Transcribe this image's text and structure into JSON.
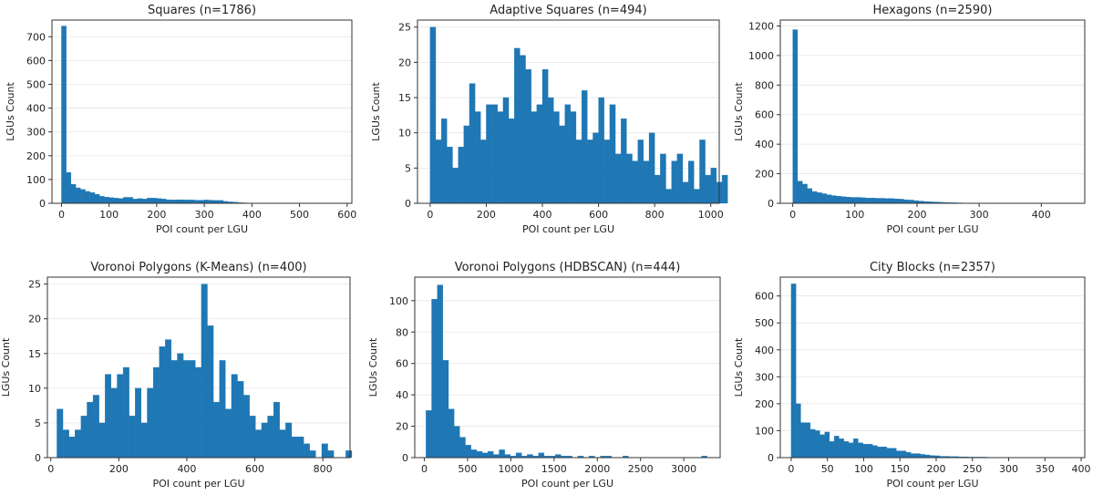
{
  "bar_color": "#1f77b4",
  "chart_data": [
    {
      "type": "bar",
      "title": "Squares (n=1786)",
      "xlabel": "POI count per LGU",
      "ylabel": "LGUs Count",
      "xlim": [
        -20,
        610
      ],
      "ylim": [
        0,
        770
      ],
      "xticks": [
        0,
        100,
        200,
        300,
        400,
        500,
        600
      ],
      "yticks": [
        0,
        100,
        200,
        300,
        400,
        500,
        600,
        700
      ],
      "bin_start": 0,
      "bin_width": 10,
      "grid": true,
      "values": [
        745,
        130,
        80,
        65,
        58,
        50,
        45,
        38,
        30,
        26,
        24,
        22,
        20,
        25,
        25,
        18,
        20,
        18,
        22,
        22,
        20,
        18,
        15,
        14,
        15,
        15,
        14,
        14,
        13,
        13,
        14,
        13,
        12,
        12,
        8,
        6,
        5,
        3,
        2,
        1,
        0,
        0,
        0,
        0,
        0,
        0,
        0,
        0,
        0,
        0,
        0,
        0,
        0,
        0,
        0,
        0,
        0,
        0,
        0,
        1
      ]
    },
    {
      "type": "bar",
      "title": "Adaptive Squares (n=494)",
      "xlabel": "POI count per LGU",
      "ylabel": "LGUs Count",
      "xlim": [
        -45,
        1030
      ],
      "ylim": [
        0,
        26
      ],
      "xticks": [
        0,
        200,
        400,
        600,
        800,
        1000
      ],
      "yticks": [
        0,
        5,
        10,
        15,
        20,
        25
      ],
      "bin_start": 0,
      "bin_width": 20,
      "grid": true,
      "values": [
        25,
        9,
        12,
        8,
        5,
        8,
        11,
        17,
        13,
        9,
        14,
        14,
        13,
        15,
        12,
        22,
        21,
        19,
        13,
        14,
        19,
        15,
        13,
        11,
        14,
        13,
        9,
        16,
        9,
        10,
        15,
        9,
        14,
        7,
        12,
        7,
        6,
        9,
        6,
        10,
        4,
        7,
        2,
        6,
        7,
        3,
        6,
        2,
        9,
        4,
        5,
        3,
        4
      ]
    },
    {
      "type": "bar",
      "title": "Hexagons (n=2590)",
      "xlabel": "POI count per LGU",
      "ylabel": "LGUs Count",
      "xlim": [
        -20,
        470
      ],
      "ylim": [
        0,
        1240
      ],
      "xticks": [
        0,
        100,
        200,
        300,
        400
      ],
      "yticks": [
        0,
        200,
        400,
        600,
        800,
        1000,
        1200
      ],
      "bin_start": 0,
      "bin_width": 7.8,
      "grid": true,
      "values": [
        1175,
        150,
        130,
        100,
        80,
        72,
        65,
        58,
        52,
        48,
        45,
        42,
        40,
        40,
        38,
        36,
        36,
        34,
        34,
        32,
        32,
        30,
        28,
        24,
        22,
        18,
        15,
        12,
        10,
        9,
        8,
        6,
        5,
        4,
        3,
        2,
        2,
        2,
        1,
        1,
        1,
        0,
        0,
        0,
        0,
        0,
        0,
        0,
        0,
        0,
        0,
        0,
        1
      ]
    },
    {
      "type": "bar",
      "title": "Voronoi Polygons (K-Means) (n=400)",
      "xlabel": "POI count per LGU",
      "ylabel": "LGUs Count",
      "xlim": [
        -10,
        880
      ],
      "ylim": [
        0,
        26
      ],
      "xticks": [
        0,
        200,
        400,
        600,
        800
      ],
      "yticks": [
        0,
        5,
        10,
        15,
        20,
        25
      ],
      "bin_start": 18,
      "bin_width": 17.7,
      "grid": true,
      "values": [
        7,
        4,
        3,
        4,
        6,
        8,
        9,
        5,
        12,
        10,
        12,
        13,
        6,
        10,
        5,
        10,
        13,
        16,
        17,
        14,
        15,
        14,
        14,
        13,
        25,
        19,
        8,
        14,
        7,
        12,
        11,
        9,
        6,
        4,
        5,
        6,
        8,
        4,
        5,
        3,
        3,
        2,
        1,
        0,
        2,
        1,
        0,
        0,
        1
      ]
    },
    {
      "type": "bar",
      "title": "Voronoi Polygons (HDBSCAN) (n=444)",
      "xlabel": "POI count per LGU",
      "ylabel": "LGUs Count",
      "xlim": [
        -110,
        3420
      ],
      "ylim": [
        0,
        115
      ],
      "xticks": [
        0,
        500,
        1000,
        1500,
        2000,
        2500,
        3000
      ],
      "yticks": [
        0,
        20,
        40,
        60,
        80,
        100
      ],
      "bin_start": 20,
      "bin_width": 65,
      "grid": true,
      "values": [
        30,
        101,
        110,
        62,
        31,
        20,
        13,
        8,
        5,
        4,
        3,
        4,
        2,
        5,
        2,
        1,
        3,
        1,
        2,
        1,
        3,
        1,
        1,
        2,
        1,
        1,
        0,
        1,
        0,
        1,
        0,
        1,
        1,
        0,
        0,
        1,
        0,
        0,
        0,
        0,
        0,
        0,
        0,
        0,
        0,
        0,
        0,
        0,
        0,
        1
      ]
    },
    {
      "type": "bar",
      "title": "City Blocks (n=2357)",
      "xlabel": "POI count per LGU",
      "ylabel": "LGUs Count",
      "xlim": [
        -15,
        405
      ],
      "ylim": [
        0,
        670
      ],
      "xticks": [
        0,
        50,
        100,
        150,
        200,
        250,
        300,
        350,
        400
      ],
      "yticks": [
        0,
        100,
        200,
        300,
        400,
        500,
        600
      ],
      "bin_start": 0,
      "bin_width": 6.6,
      "grid": true,
      "values": [
        645,
        200,
        130,
        130,
        105,
        100,
        85,
        95,
        60,
        80,
        70,
        60,
        55,
        70,
        55,
        50,
        50,
        45,
        40,
        40,
        35,
        35,
        25,
        25,
        20,
        15,
        15,
        12,
        10,
        8,
        7,
        5,
        5,
        4,
        4,
        3,
        3,
        2,
        2,
        2,
        2,
        1,
        1,
        1,
        1,
        0,
        1,
        0,
        0,
        1
      ]
    }
  ]
}
